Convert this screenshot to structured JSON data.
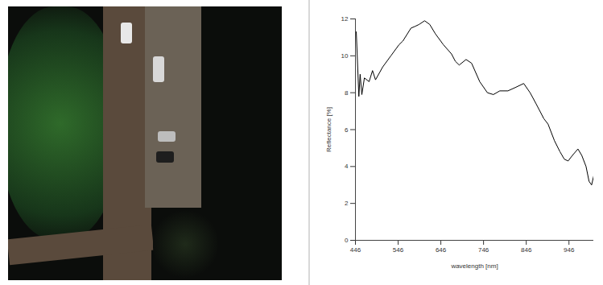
{
  "chart_data": {
    "type": "line",
    "xlabel": "wavelength [nm]",
    "ylabel": "Reflectance [%]",
    "x": [
      448,
      454,
      457,
      461,
      467,
      478,
      486,
      493,
      510,
      529,
      548,
      557,
      576,
      586,
      595,
      608,
      620,
      633,
      652,
      671,
      680,
      689,
      705,
      718,
      737,
      755,
      769,
      784,
      803,
      822,
      840,
      855,
      869,
      887,
      897,
      912,
      925,
      935,
      944,
      954,
      967,
      976,
      986,
      993,
      999,
      1004
    ],
    "values": [
      11.3,
      7.8,
      9.0,
      7.9,
      8.8,
      8.6,
      9.2,
      8.7,
      9.4,
      10.0,
      10.6,
      10.8,
      11.5,
      11.6,
      11.7,
      11.9,
      11.7,
      11.2,
      10.6,
      10.1,
      9.7,
      9.5,
      9.8,
      9.6,
      8.6,
      8.0,
      7.9,
      8.1,
      8.1,
      8.3,
      8.5,
      8.0,
      7.4,
      6.6,
      6.3,
      5.4,
      4.8,
      4.4,
      4.3,
      4.6,
      4.95,
      4.6,
      4.0,
      3.2,
      3.0,
      3.5
    ],
    "color": "#000000",
    "xlim": [
      446,
      1004
    ],
    "ylim": [
      0,
      12
    ],
    "xticks": [
      446,
      546,
      646,
      746,
      846,
      946
    ],
    "yticks": [
      0,
      2,
      4,
      6,
      8,
      10,
      12
    ],
    "grid": false
  }
}
